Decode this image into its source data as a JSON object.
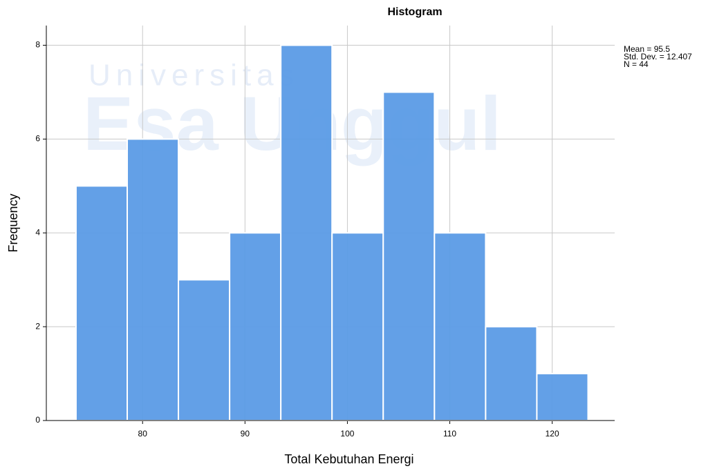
{
  "chart_data": {
    "type": "histogram",
    "title": "Histogram",
    "x_label": "Total Kebutuhan Energi",
    "y_label": "Frequency",
    "bins": [
      73.5,
      78.5,
      83.5,
      88.5,
      93.5,
      98.5,
      103.5,
      108.5,
      113.5,
      118.5,
      123.5
    ],
    "counts": [
      5,
      6,
      3,
      4,
      8,
      4,
      7,
      4,
      2,
      1
    ],
    "color": "#5b9be6",
    "xlim": [
      70.6,
      126.1
    ],
    "xticks": [
      80,
      90,
      100,
      110,
      120
    ],
    "ylim": [
      0,
      8.42
    ],
    "yticks": [
      0,
      2,
      4,
      6,
      8
    ],
    "grid": true,
    "annotations": [
      "Mean = 95.5",
      "Std. Dev. = 12.407",
      "N = 44"
    ],
    "watermark": [
      "Universitas",
      "Esa Unggul"
    ]
  }
}
